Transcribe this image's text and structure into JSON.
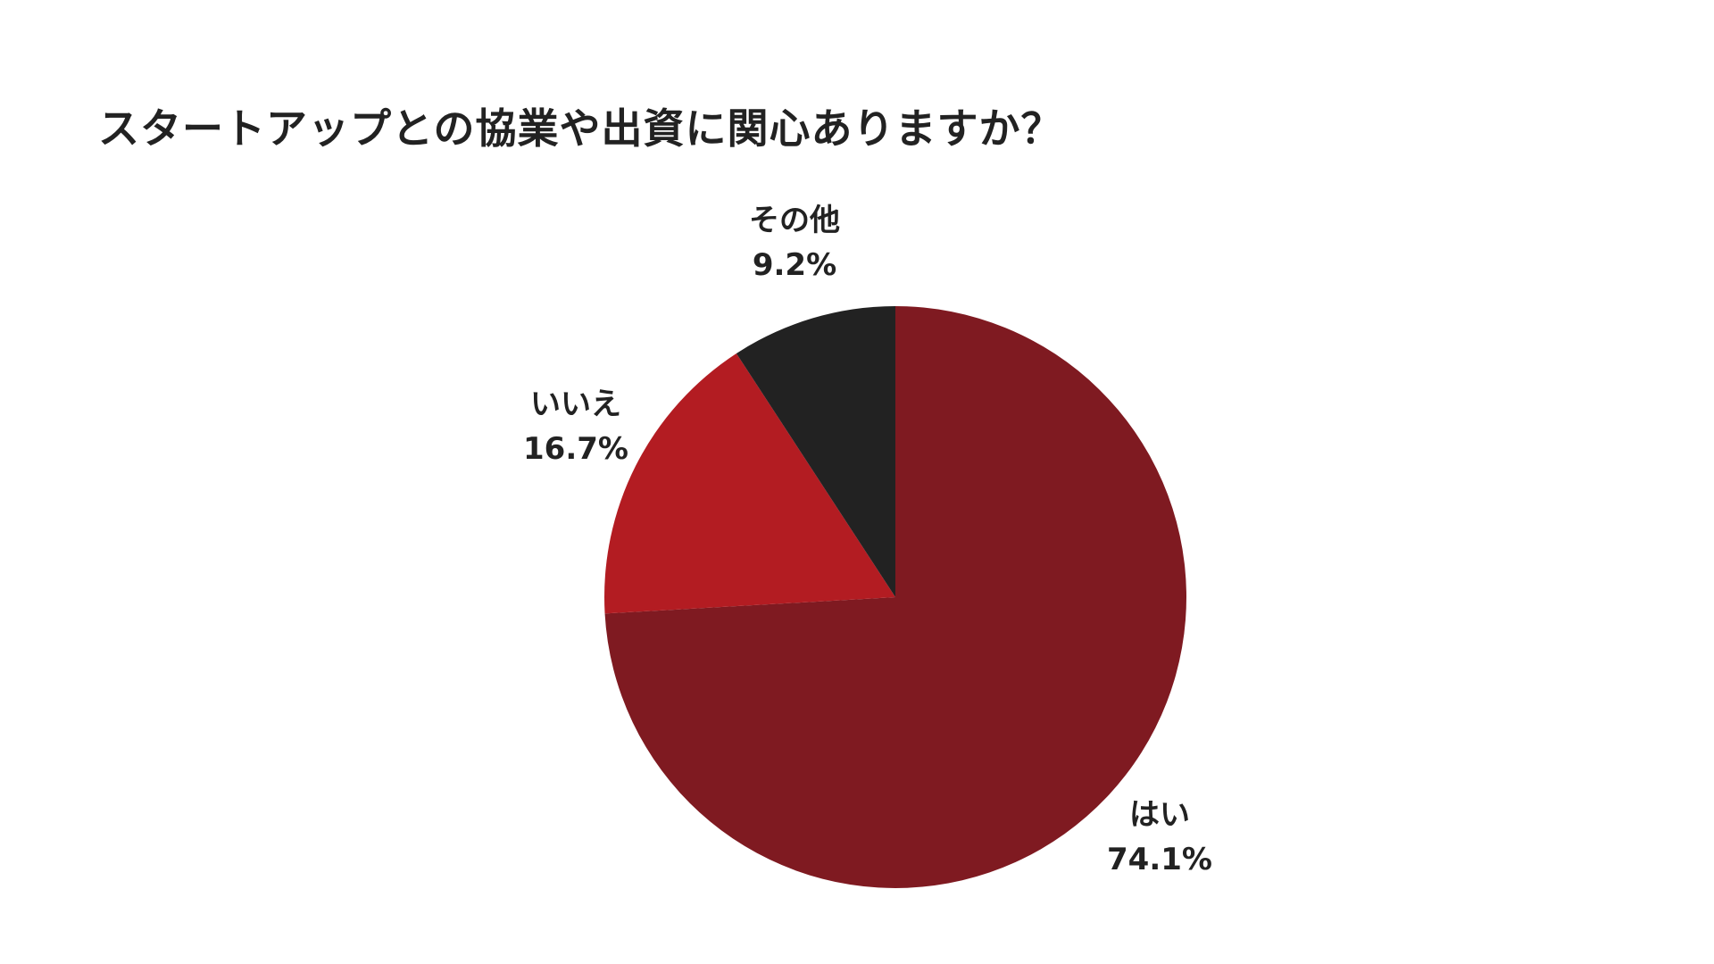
{
  "chart_data": {
    "type": "pie",
    "title": "スタートアップとの協業や出資に関心ありますか？",
    "start_angle": "12 o'clock",
    "direction": "clockwise",
    "slices": [
      {
        "label": "はい",
        "value": 74.1,
        "value_label": "74.1%",
        "color": "#7f1a21"
      },
      {
        "label": "いいえ",
        "value": 16.7,
        "value_label": "16.7%",
        "color": "#b31c22"
      },
      {
        "label": "その他",
        "value": 9.2,
        "value_label": "9.2%",
        "color": "#222222"
      }
    ]
  }
}
